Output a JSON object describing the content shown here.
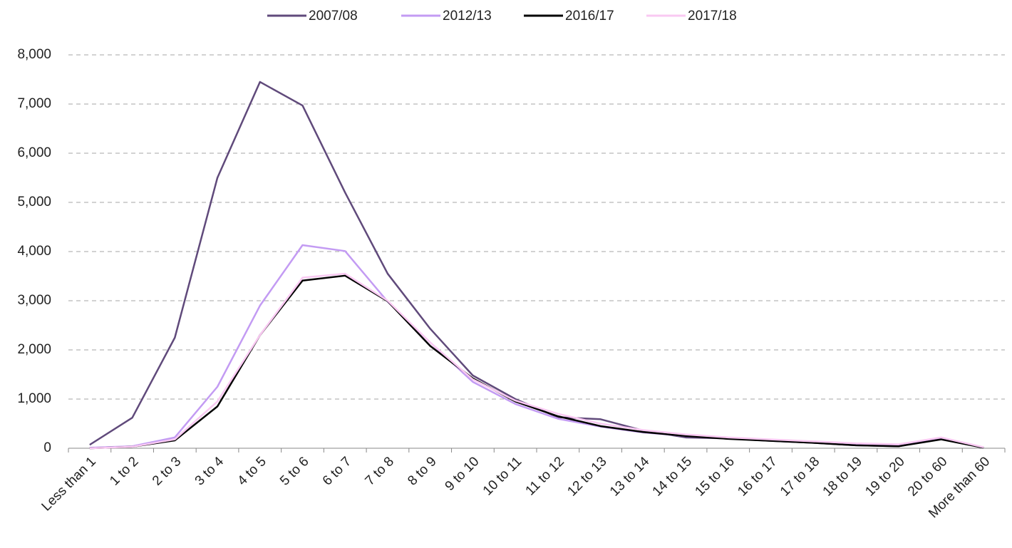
{
  "chart_data": {
    "type": "line",
    "categories": [
      "Less than 1",
      "1 to 2",
      "2 to 3",
      "3 to 4",
      "4 to 5",
      "5 to 6",
      "6 to 7",
      "7 to 8",
      "8 to 9",
      "9 to 10",
      "10 to 11",
      "11 to 12",
      "12 to 13",
      "13 to 14",
      "14 to 15",
      "15 to 16",
      "16 to 17",
      "17 to 18",
      "18 to 19",
      "19 to 20",
      "20 to 60",
      "More than 60"
    ],
    "series": [
      {
        "name": "2007/08",
        "color": "#604a7b",
        "values": [
          70,
          620,
          2250,
          5500,
          7450,
          6970,
          5200,
          3550,
          2430,
          1480,
          1000,
          630,
          590,
          360,
          220,
          200,
          150,
          110,
          60,
          40,
          200,
          10
        ]
      },
      {
        "name": "2012/13",
        "color": "#c39bf3",
        "values": [
          10,
          40,
          220,
          1250,
          2900,
          4130,
          4010,
          2980,
          2150,
          1350,
          900,
          600,
          440,
          320,
          250,
          210,
          170,
          120,
          80,
          60,
          200,
          10
        ]
      },
      {
        "name": "2016/17",
        "color": "#000000",
        "values": [
          0,
          30,
          160,
          850,
          2300,
          3410,
          3510,
          2990,
          2080,
          1420,
          950,
          650,
          450,
          330,
          250,
          190,
          150,
          110,
          60,
          40,
          180,
          10
        ]
      },
      {
        "name": "2017/18",
        "color": "#f9c9f2",
        "values": [
          0,
          30,
          180,
          950,
          2300,
          3470,
          3550,
          3000,
          2150,
          1400,
          970,
          700,
          500,
          370,
          280,
          220,
          180,
          140,
          100,
          80,
          220,
          20
        ]
      }
    ],
    "ylim": [
      0,
      8000
    ],
    "yticks": [
      0,
      {
        "value": 1000,
        "label": "1,000"
      },
      {
        "value": 2000,
        "label": "2,000"
      },
      {
        "value": 3000,
        "label": "3,000"
      },
      {
        "value": 4000,
        "label": "4,000"
      },
      {
        "value": 5000,
        "label": "5,000"
      },
      {
        "value": 6000,
        "label": "6,000"
      },
      {
        "value": 7000,
        "label": "7,000"
      },
      {
        "value": 8000,
        "label": "8,000"
      }
    ],
    "grid": true,
    "legend": "top"
  }
}
